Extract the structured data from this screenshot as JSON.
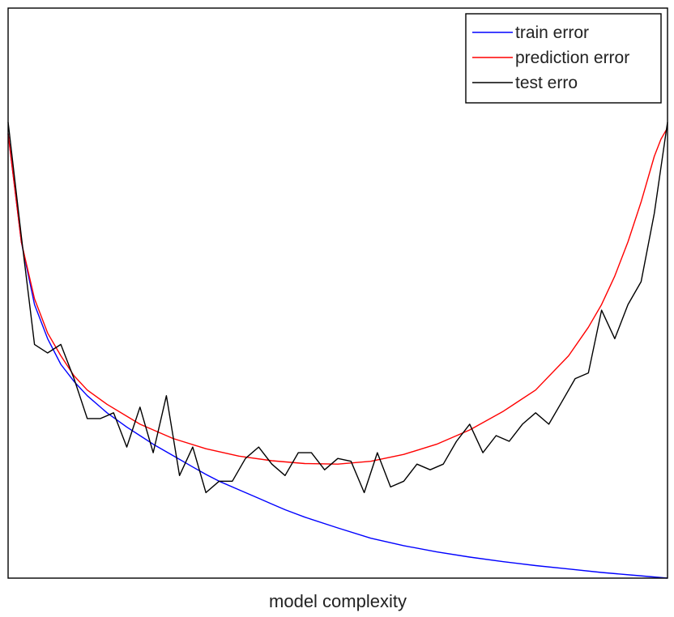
{
  "chart_data": {
    "type": "line",
    "title": "",
    "xlabel": "model complexity",
    "ylabel": "",
    "xlim": [
      0,
      1
    ],
    "ylim": [
      0,
      1
    ],
    "xticks": [],
    "yticks": [],
    "grid": false,
    "legend_position": "top-right",
    "series": [
      {
        "name": "train error",
        "color": "#0000ff",
        "x": [
          0.0,
          0.02,
          0.04,
          0.06,
          0.08,
          0.1,
          0.12,
          0.15,
          0.18,
          0.2,
          0.22,
          0.25,
          0.28,
          0.3,
          0.32,
          0.35,
          0.38,
          0.4,
          0.42,
          0.45,
          0.5,
          0.55,
          0.6,
          0.65,
          0.7,
          0.75,
          0.8,
          0.85,
          0.9,
          0.95,
          1.0
        ],
        "y": [
          0.78,
          0.59,
          0.48,
          0.42,
          0.375,
          0.345,
          0.32,
          0.29,
          0.265,
          0.25,
          0.235,
          0.215,
          0.195,
          0.182,
          0.17,
          0.155,
          0.14,
          0.13,
          0.12,
          0.107,
          0.088,
          0.07,
          0.057,
          0.046,
          0.037,
          0.029,
          0.022,
          0.016,
          0.01,
          0.005,
          0.0
        ]
      },
      {
        "name": "prediction error",
        "color": "#ff0000",
        "x": [
          0.0,
          0.02,
          0.04,
          0.06,
          0.08,
          0.1,
          0.12,
          0.15,
          0.2,
          0.25,
          0.3,
          0.35,
          0.4,
          0.45,
          0.5,
          0.55,
          0.6,
          0.65,
          0.7,
          0.75,
          0.8,
          0.85,
          0.88,
          0.9,
          0.92,
          0.94,
          0.96,
          0.98,
          0.99,
          1.0
        ],
        "y": [
          0.78,
          0.59,
          0.49,
          0.43,
          0.39,
          0.355,
          0.33,
          0.305,
          0.27,
          0.245,
          0.227,
          0.214,
          0.206,
          0.201,
          0.2,
          0.205,
          0.217,
          0.235,
          0.26,
          0.292,
          0.33,
          0.39,
          0.44,
          0.48,
          0.53,
          0.59,
          0.66,
          0.74,
          0.77,
          0.79
        ]
      },
      {
        "name": "test erro",
        "color": "#000000",
        "x": [
          0.0,
          0.02,
          0.04,
          0.06,
          0.08,
          0.1,
          0.12,
          0.14,
          0.16,
          0.18,
          0.2,
          0.22,
          0.24,
          0.26,
          0.28,
          0.3,
          0.32,
          0.34,
          0.36,
          0.38,
          0.4,
          0.42,
          0.44,
          0.46,
          0.48,
          0.5,
          0.52,
          0.54,
          0.56,
          0.58,
          0.6,
          0.62,
          0.64,
          0.66,
          0.68,
          0.7,
          0.72,
          0.74,
          0.76,
          0.78,
          0.8,
          0.82,
          0.84,
          0.86,
          0.88,
          0.9,
          0.92,
          0.94,
          0.96,
          0.98,
          1.0
        ],
        "y": [
          0.8,
          0.6,
          0.41,
          0.395,
          0.41,
          0.35,
          0.28,
          0.28,
          0.29,
          0.23,
          0.3,
          0.22,
          0.32,
          0.18,
          0.23,
          0.15,
          0.17,
          0.17,
          0.21,
          0.23,
          0.2,
          0.18,
          0.22,
          0.22,
          0.19,
          0.21,
          0.205,
          0.15,
          0.22,
          0.16,
          0.17,
          0.2,
          0.19,
          0.2,
          0.24,
          0.27,
          0.22,
          0.25,
          0.24,
          0.27,
          0.29,
          0.27,
          0.31,
          0.35,
          0.36,
          0.47,
          0.42,
          0.48,
          0.52,
          0.64,
          0.8
        ]
      }
    ]
  }
}
